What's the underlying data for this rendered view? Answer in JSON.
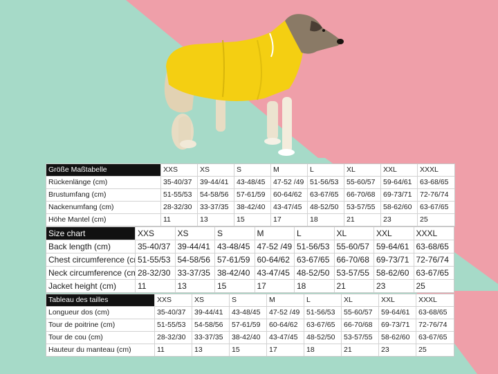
{
  "colors": {
    "pink": "#ef9fa9",
    "mint": "#a6dac8",
    "coat": "#f4cf12",
    "header": "#111111"
  },
  "image": {
    "subject": "dog-in-yellow-raincoat"
  },
  "tables": [
    {
      "title": "Größe Maßtabelle",
      "sizes": [
        "XXS",
        "XS",
        "S",
        "M",
        "L",
        "XL",
        "XXL",
        "XXXL"
      ],
      "rows": [
        {
          "label": " Rückenlänge (cm)",
          "values": [
            "35-40/37",
            "39-44/41",
            "43-48/45",
            "47-52 /49",
            "51-56/53",
            "55-60/57",
            "59-64/61",
            "63-68/65"
          ]
        },
        {
          "label": "Brustumfang (cm)",
          "values": [
            "51-55/53",
            "54-58/56",
            "57-61/59",
            "60-64/62",
            "63-67/65",
            "66-70/68",
            "69-73/71",
            "72-76/74"
          ]
        },
        {
          "label": "Nackenumfang (cm)",
          "values": [
            "28-32/30",
            "33-37/35",
            "38-42/40",
            "43-47/45",
            "48-52/50",
            "53-57/55",
            "58-62/60",
            "63-67/65"
          ]
        },
        {
          "label": "Höhe Mantel (cm)",
          "values": [
            "11",
            "13",
            "15",
            "17",
            "18",
            "21",
            "23",
            "25"
          ]
        }
      ]
    },
    {
      "title": "Size chart",
      "sizes": [
        "XXS",
        "XS",
        "S",
        "M",
        "L",
        "XL",
        "XXL",
        "XXXL"
      ],
      "rows": [
        {
          "label": "Back length (cm)",
          "values": [
            "35-40/37",
            "39-44/41",
            "43-48/45",
            "47-52 /49",
            "51-56/53",
            "55-60/57",
            "59-64/61",
            "63-68/65"
          ]
        },
        {
          "label": "Chest circumference (cm)",
          "values": [
            "51-55/53",
            "54-58/56",
            "57-61/59",
            "60-64/62",
            "63-67/65",
            "66-70/68",
            "69-73/71",
            "72-76/74"
          ]
        },
        {
          "label": "Neck circumference (cm)",
          "values": [
            "28-32/30",
            "33-37/35",
            "38-42/40",
            "43-47/45",
            "48-52/50",
            "53-57/55",
            "58-62/60",
            "63-67/65"
          ]
        },
        {
          "label": "Jacket height (cm)",
          "values": [
            "11",
            "13",
            "15",
            "17",
            "18",
            "21",
            "23",
            "25"
          ]
        }
      ]
    },
    {
      "title": "Tableau des tailles",
      "sizes": [
        "XXS",
        "XS",
        "S",
        "M",
        "L",
        "XL",
        "XXL",
        "XXXL"
      ],
      "rows": [
        {
          "label": "Longueur dos (cm)",
          "values": [
            "35-40/37",
            "39-44/41",
            "43-48/45",
            "47-52 /49",
            "51-56/53",
            "55-60/57",
            "59-64/61",
            "63-68/65"
          ]
        },
        {
          "label": "Tour de poitrine (cm)",
          "values": [
            "51-55/53",
            "54-58/56",
            "57-61/59",
            "60-64/62",
            "63-67/65",
            "66-70/68",
            "69-73/71",
            "72-76/74"
          ]
        },
        {
          "label": "Tour de cou (cm)",
          "values": [
            "28-32/30",
            "33-37/35",
            "38-42/40",
            "43-47/45",
            "48-52/50",
            "53-57/55",
            "58-62/60",
            "63-67/65"
          ]
        },
        {
          "label": "Hauteur du manteau (cm)",
          "values": [
            "11",
            "13",
            "15",
            "17",
            "18",
            "21",
            "23",
            "25"
          ]
        }
      ]
    }
  ]
}
